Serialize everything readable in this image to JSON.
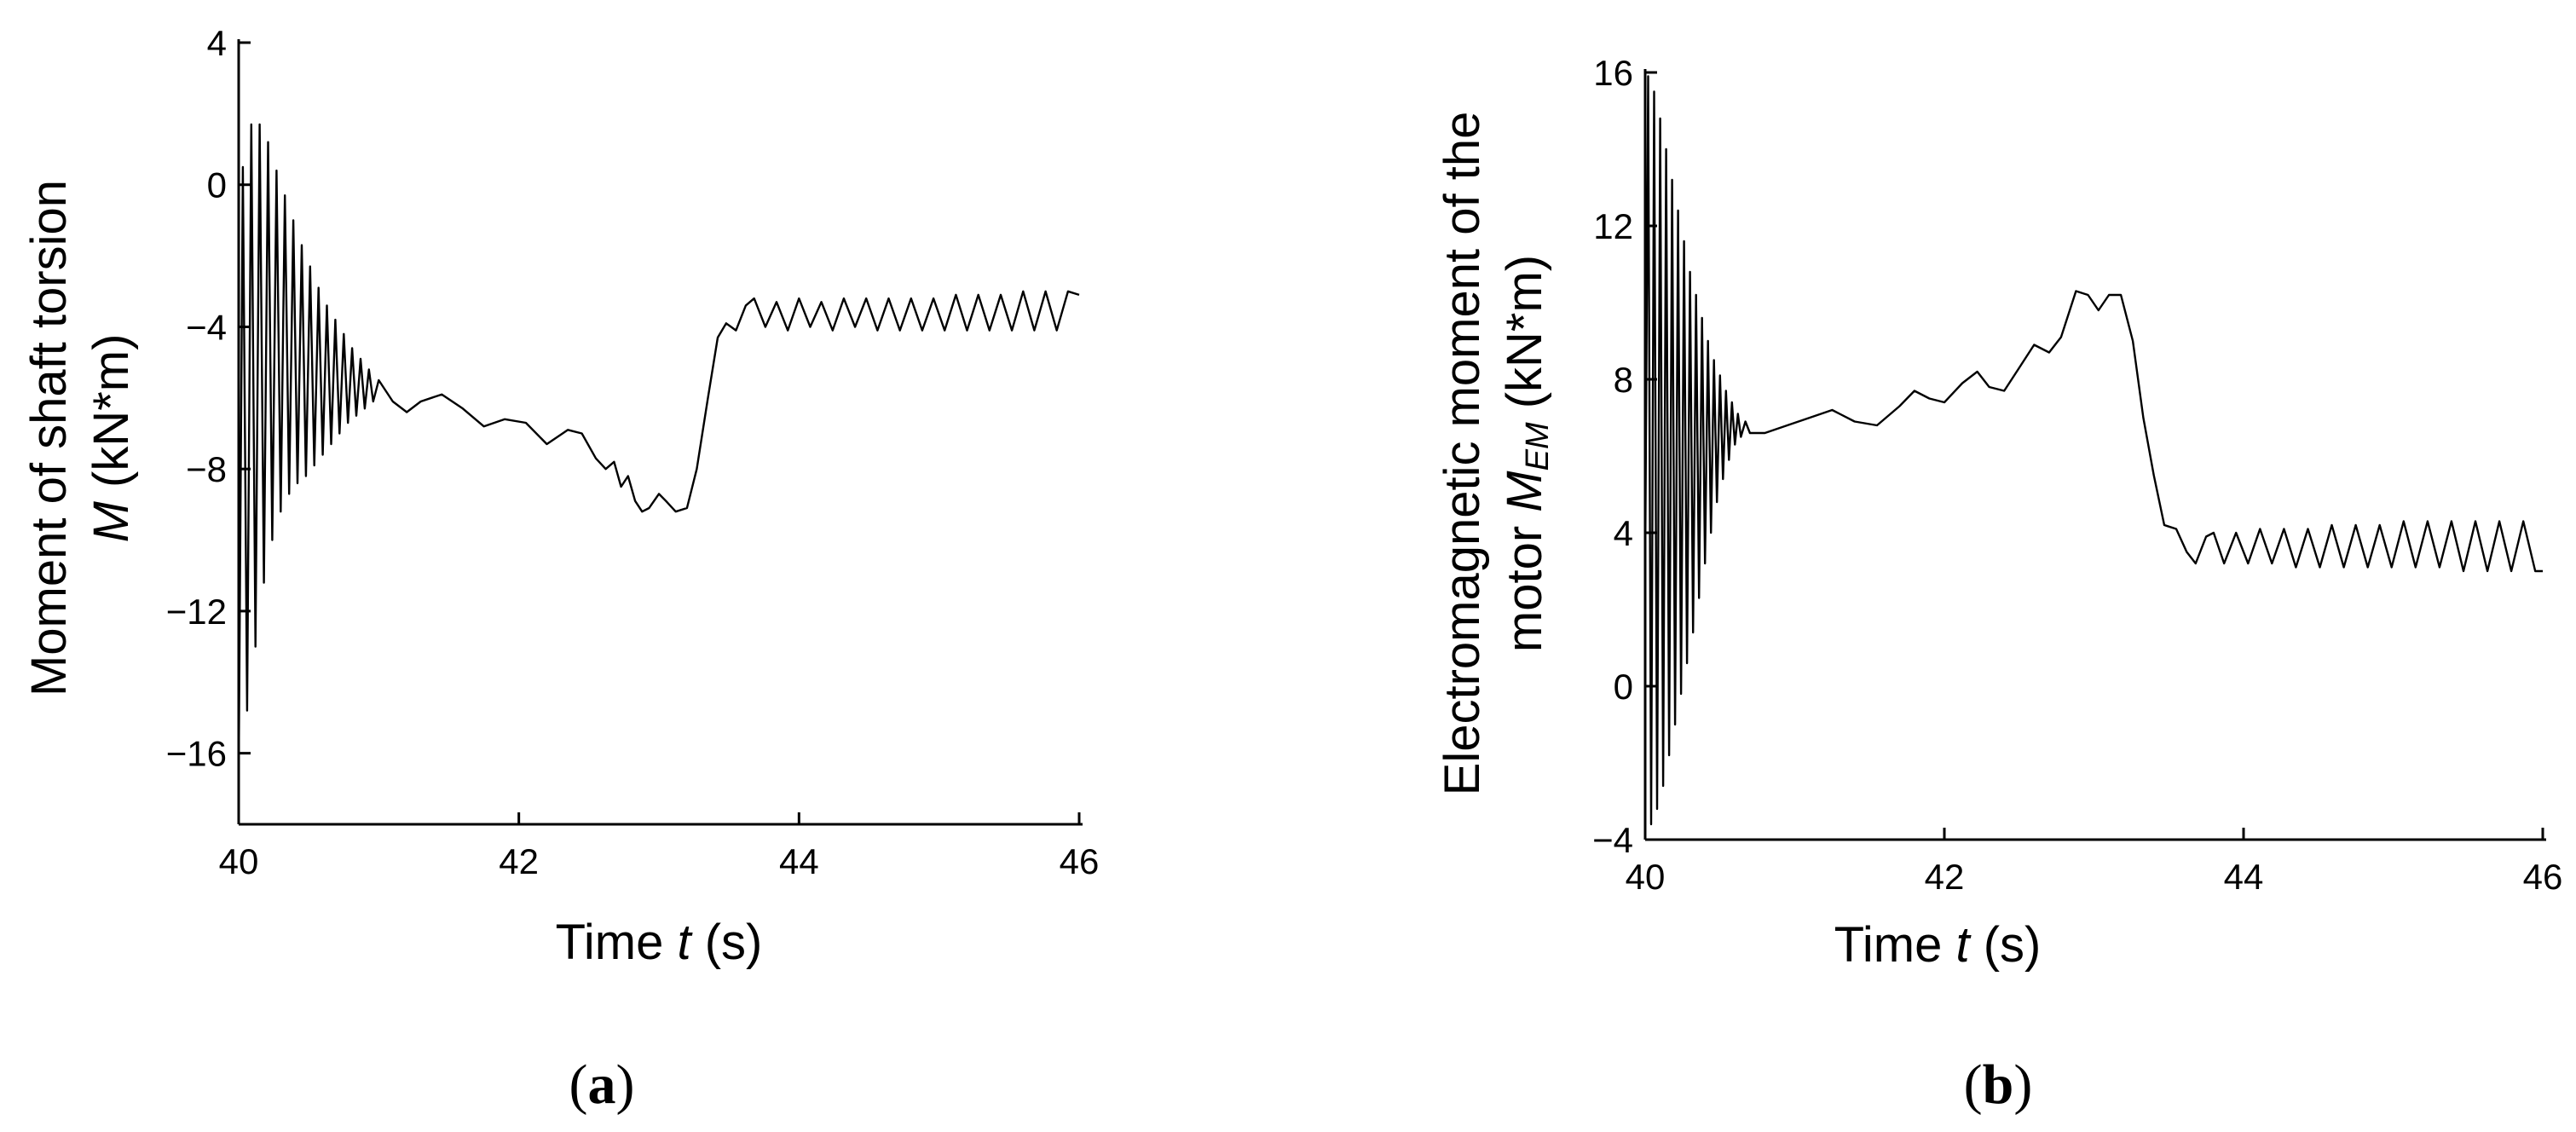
{
  "chart_data": [
    {
      "panel": "(a)",
      "panel_letter": "a",
      "type": "line",
      "xlabel": "Time t (s)",
      "xlabel_parts": [
        "Time ",
        "t",
        " (s)"
      ],
      "ylabel_line1": "Moment of shaft torsion",
      "ylabel_line2_parts": [
        "M",
        " (kN*m)"
      ],
      "xlim": [
        40,
        46
      ],
      "ylim": [
        -18,
        4
      ],
      "xticks": [
        40,
        42,
        44,
        46
      ],
      "xtick_labels": [
        "40",
        "42",
        "44",
        "46"
      ],
      "yticks": [
        4,
        0,
        -4,
        -8,
        -12,
        -16
      ],
      "ytick_labels": [
        "4",
        "0",
        "−4",
        "−8",
        "−12",
        "−16"
      ],
      "grid": false,
      "series": [
        {
          "color": "#000000",
          "points": [
            [
              40.0,
              -16.6
            ],
            [
              40.03,
              0.5
            ],
            [
              40.06,
              -14.8
            ],
            [
              40.09,
              1.7
            ],
            [
              40.12,
              -13.0
            ],
            [
              40.15,
              1.7
            ],
            [
              40.18,
              -11.2
            ],
            [
              40.21,
              1.2
            ],
            [
              40.24,
              -10.0
            ],
            [
              40.27,
              0.4
            ],
            [
              40.3,
              -9.2
            ],
            [
              40.33,
              -0.3
            ],
            [
              40.36,
              -8.7
            ],
            [
              40.39,
              -1.0
            ],
            [
              40.42,
              -8.4
            ],
            [
              40.45,
              -1.7
            ],
            [
              40.48,
              -8.2
            ],
            [
              40.51,
              -2.3
            ],
            [
              40.54,
              -7.9
            ],
            [
              40.57,
              -2.9
            ],
            [
              40.6,
              -7.6
            ],
            [
              40.63,
              -3.4
            ],
            [
              40.66,
              -7.3
            ],
            [
              40.69,
              -3.8
            ],
            [
              40.72,
              -7.0
            ],
            [
              40.75,
              -4.2
            ],
            [
              40.78,
              -6.7
            ],
            [
              40.81,
              -4.6
            ],
            [
              40.84,
              -6.5
            ],
            [
              40.87,
              -4.9
            ],
            [
              40.9,
              -6.3
            ],
            [
              40.93,
              -5.2
            ],
            [
              40.96,
              -6.1
            ],
            [
              41.0,
              -5.5
            ],
            [
              41.1,
              -6.1
            ],
            [
              41.2,
              -6.4
            ],
            [
              41.3,
              -6.1
            ],
            [
              41.45,
              -5.9
            ],
            [
              41.6,
              -6.3
            ],
            [
              41.75,
              -6.8
            ],
            [
              41.9,
              -6.6
            ],
            [
              42.05,
              -6.7
            ],
            [
              42.2,
              -7.3
            ],
            [
              42.35,
              -6.9
            ],
            [
              42.45,
              -7.0
            ],
            [
              42.55,
              -7.7
            ],
            [
              42.62,
              -8.0
            ],
            [
              42.68,
              -7.8
            ],
            [
              42.73,
              -8.5
            ],
            [
              42.78,
              -8.2
            ],
            [
              42.83,
              -8.9
            ],
            [
              42.88,
              -9.2
            ],
            [
              42.93,
              -9.1
            ],
            [
              43.0,
              -8.7
            ],
            [
              43.05,
              -8.9
            ],
            [
              43.12,
              -9.2
            ],
            [
              43.2,
              -9.1
            ],
            [
              43.27,
              -8.0
            ],
            [
              43.35,
              -6.0
            ],
            [
              43.42,
              -4.3
            ],
            [
              43.48,
              -3.9
            ],
            [
              43.55,
              -4.1
            ],
            [
              43.62,
              -3.4
            ],
            [
              43.68,
              -3.2
            ],
            [
              43.76,
              -4.0
            ],
            [
              43.84,
              -3.3
            ],
            [
              43.92,
              -4.1
            ],
            [
              44.0,
              -3.2
            ],
            [
              44.08,
              -4.0
            ],
            [
              44.16,
              -3.3
            ],
            [
              44.24,
              -4.1
            ],
            [
              44.32,
              -3.2
            ],
            [
              44.4,
              -4.0
            ],
            [
              44.48,
              -3.2
            ],
            [
              44.56,
              -4.1
            ],
            [
              44.64,
              -3.2
            ],
            [
              44.72,
              -4.1
            ],
            [
              44.8,
              -3.2
            ],
            [
              44.88,
              -4.1
            ],
            [
              44.96,
              -3.2
            ],
            [
              45.04,
              -4.1
            ],
            [
              45.12,
              -3.1
            ],
            [
              45.2,
              -4.1
            ],
            [
              45.28,
              -3.1
            ],
            [
              45.36,
              -4.1
            ],
            [
              45.44,
              -3.1
            ],
            [
              45.52,
              -4.1
            ],
            [
              45.6,
              -3.0
            ],
            [
              45.68,
              -4.1
            ],
            [
              45.76,
              -3.0
            ],
            [
              45.84,
              -4.1
            ],
            [
              45.92,
              -3.0
            ],
            [
              46.0,
              -3.1
            ]
          ]
        }
      ]
    },
    {
      "panel": "(b)",
      "panel_letter": "b",
      "type": "line",
      "xlabel": "Time t (s)",
      "xlabel_parts": [
        "Time ",
        "t",
        " (s)"
      ],
      "ylabel_line1": "Electromagnetic moment of the",
      "ylabel_line2_parts": [
        "motor ",
        "M",
        "EM",
        " (kN*m)"
      ],
      "xlim": [
        40,
        46
      ],
      "ylim": [
        -4,
        16
      ],
      "xticks": [
        40,
        42,
        44,
        46
      ],
      "xtick_labels": [
        "40",
        "42",
        "44",
        "46"
      ],
      "yticks": [
        16,
        12,
        8,
        4,
        0,
        -4
      ],
      "ytick_labels": [
        "16",
        "12",
        "8",
        "4",
        "0",
        "−4"
      ],
      "grid": false,
      "series": [
        {
          "color": "#000000",
          "points": [
            [
              40.0,
              3.0
            ],
            [
              40.02,
              15.9
            ],
            [
              40.04,
              -3.6
            ],
            [
              40.06,
              15.5
            ],
            [
              40.08,
              -3.2
            ],
            [
              40.1,
              14.8
            ],
            [
              40.12,
              -2.6
            ],
            [
              40.14,
              14.0
            ],
            [
              40.16,
              -1.8
            ],
            [
              40.18,
              13.2
            ],
            [
              40.2,
              -1.0
            ],
            [
              40.22,
              12.4
            ],
            [
              40.24,
              -0.2
            ],
            [
              40.26,
              11.6
            ],
            [
              40.28,
              0.6
            ],
            [
              40.3,
              10.8
            ],
            [
              40.32,
              1.4
            ],
            [
              40.34,
              10.2
            ],
            [
              40.36,
              2.3
            ],
            [
              40.38,
              9.6
            ],
            [
              40.4,
              3.2
            ],
            [
              40.42,
              9.0
            ],
            [
              40.44,
              4.0
            ],
            [
              40.46,
              8.5
            ],
            [
              40.48,
              4.8
            ],
            [
              40.5,
              8.1
            ],
            [
              40.52,
              5.4
            ],
            [
              40.54,
              7.7
            ],
            [
              40.56,
              5.9
            ],
            [
              40.58,
              7.4
            ],
            [
              40.6,
              6.3
            ],
            [
              40.62,
              7.1
            ],
            [
              40.64,
              6.5
            ],
            [
              40.67,
              6.9
            ],
            [
              40.7,
              6.6
            ],
            [
              40.8,
              6.6
            ],
            [
              40.95,
              6.8
            ],
            [
              41.1,
              7.0
            ],
            [
              41.25,
              7.2
            ],
            [
              41.4,
              6.9
            ],
            [
              41.55,
              6.8
            ],
            [
              41.7,
              7.3
            ],
            [
              41.8,
              7.7
            ],
            [
              41.9,
              7.5
            ],
            [
              42.0,
              7.4
            ],
            [
              42.12,
              7.9
            ],
            [
              42.22,
              8.2
            ],
            [
              42.3,
              7.8
            ],
            [
              42.4,
              7.7
            ],
            [
              42.5,
              8.3
            ],
            [
              42.6,
              8.9
            ],
            [
              42.7,
              8.7
            ],
            [
              42.78,
              9.1
            ],
            [
              42.88,
              10.3
            ],
            [
              42.96,
              10.2
            ],
            [
              43.03,
              9.8
            ],
            [
              43.1,
              10.2
            ],
            [
              43.18,
              10.2
            ],
            [
              43.26,
              9.0
            ],
            [
              43.33,
              7.0
            ],
            [
              43.4,
              5.5
            ],
            [
              43.47,
              4.2
            ],
            [
              43.55,
              4.1
            ],
            [
              43.62,
              3.5
            ],
            [
              43.68,
              3.2
            ],
            [
              43.75,
              3.9
            ],
            [
              43.8,
              4.0
            ],
            [
              43.87,
              3.2
            ],
            [
              43.95,
              4.0
            ],
            [
              44.03,
              3.2
            ],
            [
              44.11,
              4.1
            ],
            [
              44.19,
              3.2
            ],
            [
              44.27,
              4.1
            ],
            [
              44.35,
              3.1
            ],
            [
              44.43,
              4.1
            ],
            [
              44.51,
              3.1
            ],
            [
              44.59,
              4.2
            ],
            [
              44.67,
              3.1
            ],
            [
              44.75,
              4.2
            ],
            [
              44.83,
              3.1
            ],
            [
              44.91,
              4.2
            ],
            [
              44.99,
              3.1
            ],
            [
              45.07,
              4.3
            ],
            [
              45.15,
              3.1
            ],
            [
              45.23,
              4.3
            ],
            [
              45.31,
              3.1
            ],
            [
              45.39,
              4.3
            ],
            [
              45.47,
              3.0
            ],
            [
              45.55,
              4.3
            ],
            [
              45.63,
              3.0
            ],
            [
              45.71,
              4.3
            ],
            [
              45.79,
              3.0
            ],
            [
              45.87,
              4.3
            ],
            [
              45.95,
              3.0
            ],
            [
              46.0,
              3.0
            ]
          ]
        }
      ]
    }
  ]
}
